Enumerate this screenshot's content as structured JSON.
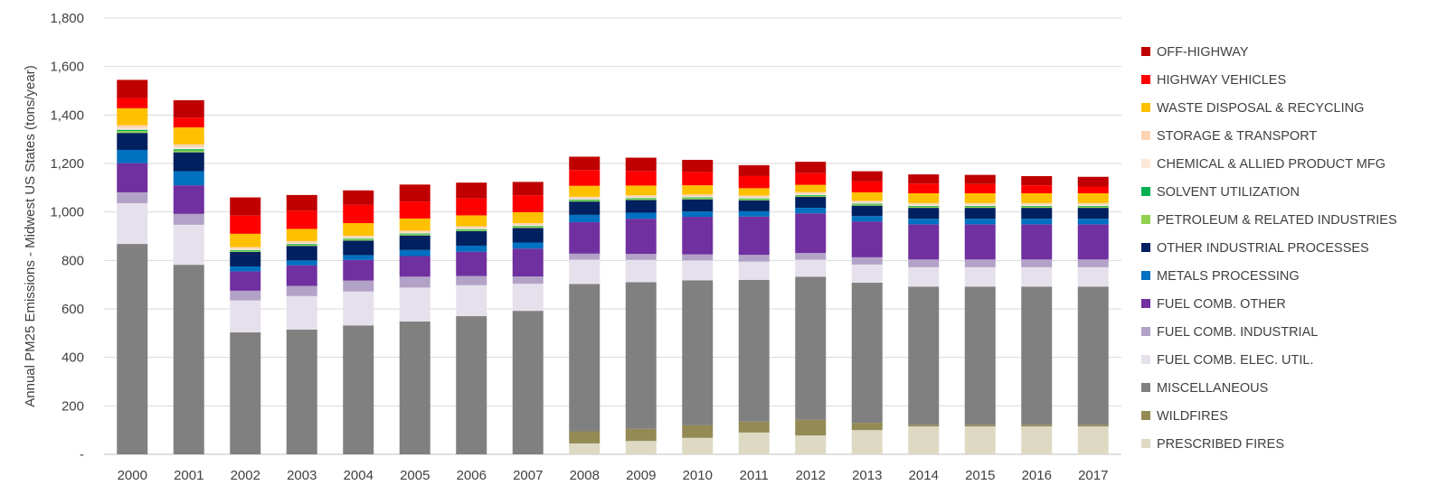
{
  "chart_data": {
    "type": "bar",
    "stacked": true,
    "title": "",
    "xlabel": "",
    "ylabel": "Annual PM25 Emissions - Midwest US States  (tons/year)",
    "ylim": [
      0,
      1800
    ],
    "yticks": [
      0,
      200,
      400,
      600,
      800,
      1000,
      1200,
      1400,
      1600,
      1800
    ],
    "ytick_labels": [
      "-",
      "200",
      "400",
      "600",
      "800",
      "1,000",
      "1,200",
      "1,400",
      "1,600",
      "1,800"
    ],
    "grid": true,
    "legend_position": "right",
    "categories": [
      "2000",
      "2001",
      "2002",
      "2003",
      "2004",
      "2005",
      "2006",
      "2007",
      "2008",
      "2009",
      "2010",
      "2011",
      "2012",
      "2013",
      "2014",
      "2015",
      "2016",
      "2017"
    ],
    "series": [
      {
        "name": "PRESCRIBED FIRES",
        "color": "#ddd9c3",
        "values": [
          0,
          0,
          0,
          0,
          0,
          0,
          0,
          0,
          45,
          55,
          68,
          90,
          78,
          100,
          115,
          115,
          115,
          115
        ]
      },
      {
        "name": "WILDFIRES",
        "color": "#948a54",
        "values": [
          0,
          0,
          0,
          0,
          0,
          0,
          0,
          0,
          50,
          50,
          52,
          45,
          65,
          30,
          7,
          7,
          7,
          7
        ]
      },
      {
        "name": "MISCELLANEOUS",
        "color": "#808080",
        "values": [
          868,
          782,
          503,
          515,
          532,
          548,
          570,
          592,
          608,
          605,
          598,
          585,
          590,
          578,
          570,
          570,
          570,
          570
        ]
      },
      {
        "name": "FUEL COMB. ELEC. UTIL.",
        "color": "#e6e0ec",
        "values": [
          168,
          165,
          132,
          138,
          140,
          140,
          128,
          112,
          100,
          92,
          82,
          75,
          70,
          75,
          80,
          80,
          80,
          80
        ]
      },
      {
        "name": "FUEL COMB. INDUSTRIAL",
        "color": "#b3a2c7",
        "values": [
          45,
          45,
          40,
          42,
          45,
          45,
          38,
          30,
          25,
          25,
          25,
          28,
          28,
          30,
          32,
          32,
          32,
          32
        ]
      },
      {
        "name": "FUEL COMB. OTHER",
        "color": "#7030a0",
        "values": [
          120,
          118,
          80,
          85,
          85,
          85,
          100,
          115,
          130,
          145,
          155,
          158,
          163,
          148,
          145,
          145,
          145,
          145
        ]
      },
      {
        "name": "METALS PROCESSING",
        "color": "#0070c0",
        "values": [
          55,
          58,
          20,
          20,
          20,
          25,
          25,
          25,
          30,
          25,
          22,
          22,
          23,
          22,
          23,
          23,
          23,
          23
        ]
      },
      {
        "name": "OTHER INDUSTRIAL PROCESSES",
        "color": "#002060",
        "values": [
          70,
          78,
          60,
          60,
          60,
          60,
          60,
          60,
          55,
          52,
          50,
          45,
          45,
          43,
          45,
          45,
          45,
          45
        ]
      },
      {
        "name": "PETROLEUM & RELATED INDUSTRIES",
        "color": "#92d050",
        "values": [
          8,
          8,
          5,
          5,
          5,
          5,
          5,
          5,
          5,
          5,
          5,
          5,
          5,
          5,
          5,
          5,
          5,
          5
        ]
      },
      {
        "name": "SOLVENT UTILIZATION",
        "color": "#00b050",
        "values": [
          5,
          5,
          3,
          3,
          3,
          3,
          3,
          3,
          3,
          3,
          3,
          3,
          3,
          3,
          3,
          3,
          3,
          3
        ]
      },
      {
        "name": "CHEMICAL & ALLIED PRODUCT MFG",
        "color": "#fde9d9",
        "values": [
          7,
          8,
          4,
          4,
          4,
          4,
          4,
          4,
          4,
          4,
          4,
          4,
          4,
          4,
          4,
          4,
          4,
          4
        ]
      },
      {
        "name": "STORAGE & TRANSPORT",
        "color": "#fbd5b5",
        "values": [
          12,
          12,
          8,
          8,
          8,
          8,
          8,
          8,
          8,
          8,
          8,
          8,
          8,
          8,
          8,
          8,
          8,
          8
        ]
      },
      {
        "name": "WASTE DISPOSAL & RECYCLING",
        "color": "#ffc000",
        "values": [
          70,
          70,
          55,
          50,
          52,
          50,
          45,
          45,
          45,
          40,
          38,
          30,
          30,
          35,
          40,
          40,
          40,
          40
        ]
      },
      {
        "name": "HIGHWAY VEHICLES",
        "color": "#ff0000",
        "values": [
          42,
          40,
          75,
          75,
          75,
          70,
          70,
          70,
          65,
          60,
          55,
          50,
          48,
          45,
          40,
          38,
          33,
          28
        ]
      },
      {
        "name": "OFF-HIGHWAY",
        "color": "#c00000",
        "values": [
          75,
          72,
          75,
          65,
          60,
          70,
          65,
          55,
          55,
          55,
          50,
          45,
          47,
          42,
          38,
          38,
          38,
          40
        ]
      }
    ]
  }
}
